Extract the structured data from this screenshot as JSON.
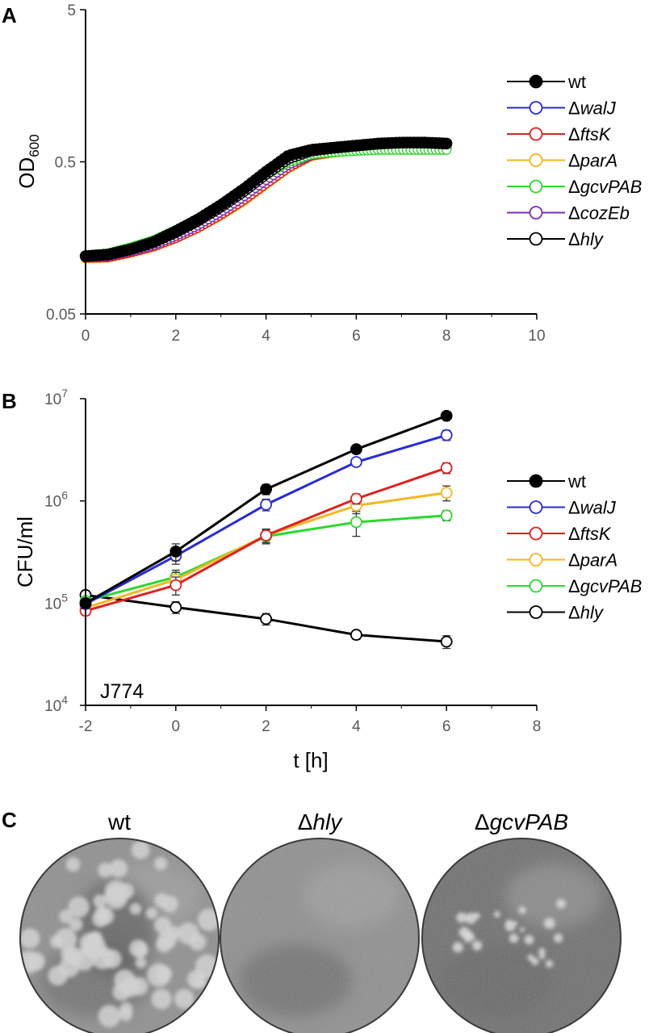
{
  "panels": {
    "a": "A",
    "b": "B",
    "c": "C"
  },
  "chart_data": [
    {
      "type": "line",
      "id": "growth",
      "ylabel_main": "OD",
      "ylabel_sub": "600",
      "xlabel": "",
      "yscale": "log",
      "ylim": [
        0.05,
        5
      ],
      "xlim": [
        0,
        10
      ],
      "xticks": [
        "0",
        "2",
        "4",
        "6",
        "8",
        "10"
      ],
      "yticks": [
        "0.05",
        "0.5",
        "5"
      ],
      "series": [
        {
          "name": "wt",
          "prefix": "",
          "italic": "",
          "color": "#000000",
          "filled": true,
          "x": [
            0,
            0.5,
            1,
            1.5,
            2,
            2.5,
            3,
            3.5,
            4,
            4.5,
            5,
            5.5,
            6,
            6.5,
            7,
            7.5,
            8
          ],
          "y": [
            0.12,
            0.123,
            0.133,
            0.148,
            0.175,
            0.21,
            0.26,
            0.33,
            0.43,
            0.55,
            0.6,
            0.62,
            0.64,
            0.66,
            0.67,
            0.67,
            0.66
          ]
        },
        {
          "name": "walJ",
          "prefix": "Δ",
          "italic": "walJ",
          "color": "#2a2ad8",
          "filled": false,
          "x": [
            0,
            0.5,
            1,
            1.5,
            2,
            2.5,
            3,
            3.5,
            4,
            4.5,
            5,
            5.5,
            6,
            6.5,
            7,
            7.5,
            8
          ],
          "y": [
            0.119,
            0.121,
            0.13,
            0.143,
            0.165,
            0.195,
            0.24,
            0.3,
            0.39,
            0.49,
            0.56,
            0.59,
            0.61,
            0.63,
            0.64,
            0.64,
            0.64
          ]
        },
        {
          "name": "ftsK",
          "prefix": "Δ",
          "italic": "ftsK",
          "color": "#e02020",
          "filled": false,
          "x": [
            0,
            0.5,
            1,
            1.5,
            2,
            2.5,
            3,
            3.5,
            4,
            4.5,
            5,
            5.5,
            6,
            6.5,
            7,
            7.5,
            8
          ],
          "y": [
            0.117,
            0.118,
            0.127,
            0.139,
            0.158,
            0.185,
            0.225,
            0.28,
            0.36,
            0.46,
            0.55,
            0.58,
            0.6,
            0.61,
            0.62,
            0.62,
            0.62
          ]
        },
        {
          "name": "parA",
          "prefix": "Δ",
          "italic": "parA",
          "color": "#f6b622",
          "filled": false,
          "x": [
            0,
            0.5,
            1,
            1.5,
            2,
            2.5,
            3,
            3.5,
            4,
            4.5,
            5,
            5.5,
            6,
            6.5,
            7,
            7.5,
            8
          ],
          "y": [
            0.116,
            0.117,
            0.126,
            0.138,
            0.157,
            0.184,
            0.222,
            0.275,
            0.355,
            0.455,
            0.545,
            0.575,
            0.595,
            0.605,
            0.61,
            0.61,
            0.61
          ]
        },
        {
          "name": "gcvPAB",
          "prefix": "Δ",
          "italic": "gcvPAB",
          "color": "#2ed82e",
          "filled": false,
          "x": [
            0,
            0.5,
            1,
            1.5,
            2,
            2.5,
            3,
            3.5,
            4,
            4.5,
            5,
            5.5,
            6,
            6.5,
            7,
            7.5,
            8
          ],
          "y": [
            0.121,
            0.125,
            0.137,
            0.152,
            0.178,
            0.212,
            0.258,
            0.32,
            0.41,
            0.5,
            0.56,
            0.58,
            0.59,
            0.6,
            0.6,
            0.6,
            0.6
          ]
        },
        {
          "name": "cozEb",
          "prefix": "Δ",
          "italic": "cozEb",
          "color": "#7b2fa8",
          "filled": false,
          "x": [
            0,
            0.5,
            1,
            1.5,
            2,
            2.5,
            3,
            3.5,
            4,
            4.5,
            5,
            5.5,
            6,
            6.5,
            7,
            7.5,
            8
          ],
          "y": [
            0.118,
            0.12,
            0.129,
            0.142,
            0.163,
            0.192,
            0.235,
            0.295,
            0.38,
            0.48,
            0.555,
            0.585,
            0.605,
            0.62,
            0.63,
            0.63,
            0.63
          ]
        },
        {
          "name": "hly",
          "prefix": "Δ",
          "italic": "hly",
          "color": "#000000",
          "filled": false,
          "x": [
            0,
            0.5,
            1,
            1.5,
            2,
            2.5,
            3,
            3.5,
            4,
            4.5,
            5,
            5.5,
            6,
            6.5,
            7,
            7.5,
            8
          ],
          "y": [
            0.12,
            0.122,
            0.132,
            0.146,
            0.17,
            0.203,
            0.25,
            0.315,
            0.41,
            0.52,
            0.585,
            0.61,
            0.63,
            0.65,
            0.66,
            0.66,
            0.65
          ]
        }
      ]
    },
    {
      "type": "line",
      "id": "cfu",
      "ylabel": "CFU/ml",
      "xlabel": "t [h]",
      "annotation": "J774",
      "yscale": "log",
      "ylim": [
        10000,
        10000000
      ],
      "xlim": [
        -2,
        8
      ],
      "xticks": [
        "-2",
        "0",
        "2",
        "4",
        "6",
        "8"
      ],
      "yticks": [
        {
          "base": "10",
          "exp": "4"
        },
        {
          "base": "10",
          "exp": "5"
        },
        {
          "base": "10",
          "exp": "6"
        },
        {
          "base": "10",
          "exp": "7"
        }
      ],
      "series": [
        {
          "name": "wt",
          "prefix": "",
          "italic": "",
          "color": "#000000",
          "filled": true,
          "x": [
            -2,
            0,
            2,
            4,
            6
          ],
          "y": [
            100000,
            320000,
            1300000,
            3200000,
            6800000
          ],
          "err": [
            10000,
            60000,
            150000,
            250000,
            300000
          ]
        },
        {
          "name": "walJ",
          "prefix": "Δ",
          "italic": "walJ",
          "color": "#2a2ad8",
          "filled": false,
          "x": [
            -2,
            0,
            2,
            4,
            6
          ],
          "y": [
            98000,
            290000,
            920000,
            2400000,
            4400000
          ],
          "err": [
            10000,
            50000,
            120000,
            200000,
            500000
          ]
        },
        {
          "name": "ftsK",
          "prefix": "Δ",
          "italic": "ftsK",
          "color": "#e02020",
          "filled": false,
          "x": [
            -2,
            0,
            2,
            4,
            6
          ],
          "y": [
            84000,
            150000,
            460000,
            1050000,
            2100000
          ],
          "err": [
            8000,
            30000,
            70000,
            120000,
            250000
          ]
        },
        {
          "name": "parA",
          "prefix": "Δ",
          "italic": "parA",
          "color": "#f6b622",
          "filled": false,
          "x": [
            -2,
            0,
            2,
            4,
            6
          ],
          "y": [
            90000,
            170000,
            460000,
            900000,
            1200000
          ],
          "err": [
            9000,
            30000,
            70000,
            150000,
            200000
          ]
        },
        {
          "name": "gcvPAB",
          "prefix": "Δ",
          "italic": "gcvPAB",
          "color": "#2ed82e",
          "filled": false,
          "x": [
            -2,
            0,
            2,
            4,
            6
          ],
          "y": [
            105000,
            180000,
            450000,
            620000,
            720000
          ],
          "err": [
            10000,
            30000,
            70000,
            170000,
            80000
          ]
        },
        {
          "name": "hly",
          "prefix": "Δ",
          "italic": "hly",
          "color": "#000000",
          "filled": false,
          "x": [
            -2,
            0,
            2,
            4,
            6
          ],
          "y": [
            120000,
            91000,
            70000,
            49000,
            42000
          ],
          "err": [
            12000,
            12000,
            9000,
            5000,
            6000
          ]
        }
      ]
    }
  ],
  "plates": [
    {
      "prefix": "",
      "italic": "",
      "plain": "wt"
    },
    {
      "prefix": "Δ",
      "italic": "hly",
      "plain": ""
    },
    {
      "prefix": "Δ",
      "italic": "gcvPAB",
      "plain": ""
    }
  ]
}
